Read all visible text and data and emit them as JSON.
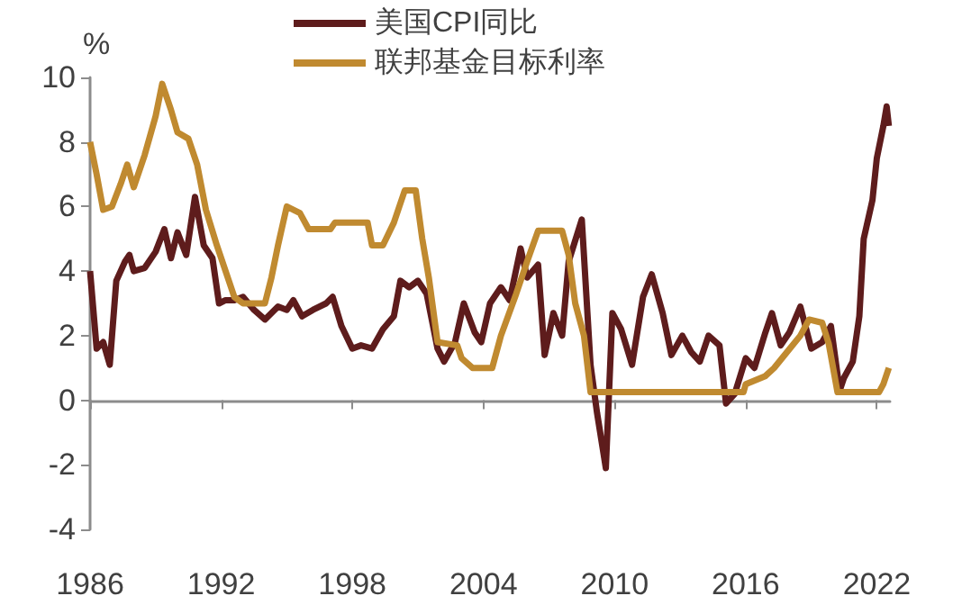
{
  "chart_data": {
    "type": "line",
    "ylabel": "%",
    "legend": "top",
    "xlim": [
      1986,
      2022.6
    ],
    "xticks": [
      1986,
      1992,
      1998,
      2004,
      2010,
      2016,
      2022
    ],
    "ylim": [
      -4,
      10
    ],
    "yticks": [
      -4,
      -2,
      0,
      2,
      4,
      6,
      8,
      10
    ],
    "series": [
      {
        "name": "美国CPI同比",
        "color": "#5e1c1c",
        "x": [
          1986.0,
          1986.3,
          1986.6,
          1986.9,
          1987.2,
          1987.6,
          1987.8,
          1988.0,
          1988.5,
          1989.0,
          1989.4,
          1989.7,
          1990.0,
          1990.4,
          1990.8,
          1991.2,
          1991.6,
          1991.9,
          1992.2,
          1992.6,
          1993.0,
          1993.5,
          1994.0,
          1994.6,
          1995.0,
          1995.3,
          1995.7,
          1996.2,
          1996.8,
          1997.1,
          1997.5,
          1998.0,
          1998.4,
          1998.9,
          1999.4,
          1999.9,
          2000.2,
          2000.6,
          2001.0,
          2001.4,
          2001.9,
          2002.2,
          2002.7,
          2003.1,
          2003.6,
          2003.9,
          2004.3,
          2004.8,
          2005.2,
          2005.7,
          2006.0,
          2006.5,
          2006.8,
          2007.2,
          2007.6,
          2007.9,
          2008.5,
          2008.9,
          2009.2,
          2009.6,
          2009.9,
          2010.3,
          2010.8,
          2011.3,
          2011.7,
          2012.2,
          2012.6,
          2013.1,
          2013.5,
          2013.9,
          2014.3,
          2014.8,
          2015.1,
          2015.5,
          2016.0,
          2016.4,
          2016.9,
          2017.2,
          2017.6,
          2018.0,
          2018.5,
          2019.0,
          2019.5,
          2019.9,
          2020.3,
          2020.5,
          2020.9,
          2021.2,
          2021.4,
          2021.8,
          2022.0,
          2022.3,
          2022.45,
          2022.55
        ],
        "values": [
          4.0,
          1.6,
          1.8,
          1.1,
          3.7,
          4.3,
          4.5,
          4.0,
          4.1,
          4.6,
          5.3,
          4.4,
          5.2,
          4.5,
          6.3,
          4.8,
          4.4,
          3.0,
          3.1,
          3.1,
          3.2,
          2.8,
          2.5,
          2.9,
          2.8,
          3.1,
          2.6,
          2.8,
          3.0,
          3.2,
          2.3,
          1.6,
          1.7,
          1.6,
          2.2,
          2.6,
          3.7,
          3.5,
          3.7,
          3.3,
          1.6,
          1.2,
          1.8,
          3.0,
          2.1,
          1.8,
          3.0,
          3.5,
          3.1,
          4.7,
          3.8,
          4.2,
          1.4,
          2.7,
          2.0,
          4.3,
          5.6,
          1.1,
          -0.4,
          -2.1,
          2.7,
          2.2,
          1.1,
          3.2,
          3.9,
          2.7,
          1.4,
          2.0,
          1.5,
          1.2,
          2.0,
          1.7,
          -0.1,
          0.2,
          1.3,
          1.0,
          2.1,
          2.7,
          1.7,
          2.1,
          2.9,
          1.6,
          1.8,
          2.3,
          0.3,
          0.7,
          1.2,
          2.6,
          5.0,
          6.2,
          7.5,
          8.5,
          9.1,
          8.5
        ]
      },
      {
        "name": "联邦基金目标利率",
        "color": "#c08a30",
        "x": [
          1986.0,
          1986.3,
          1986.6,
          1987.0,
          1987.4,
          1987.7,
          1988.0,
          1988.5,
          1989.0,
          1989.3,
          1989.7,
          1990.0,
          1990.5,
          1990.9,
          1991.3,
          1991.8,
          1992.2,
          1992.6,
          1993.0,
          1994.0,
          1994.3,
          1994.6,
          1995.0,
          1995.6,
          1996.0,
          1997.0,
          1997.2,
          1998.7,
          1998.9,
          1999.4,
          1999.9,
          2000.4,
          2000.9,
          2001.2,
          2001.5,
          2001.9,
          2002.8,
          2003.0,
          2003.5,
          2004.4,
          2004.8,
          2005.5,
          2006.0,
          2006.5,
          2007.6,
          2007.9,
          2008.2,
          2008.6,
          2008.9,
          2015.9,
          2016.0,
          2016.9,
          2017.3,
          2017.9,
          2018.5,
          2018.9,
          2019.5,
          2019.8,
          2020.2,
          2022.1,
          2022.3,
          2022.55
        ],
        "values": [
          8.0,
          7.0,
          5.9,
          6.0,
          6.7,
          7.3,
          6.6,
          7.6,
          8.8,
          9.8,
          9.0,
          8.3,
          8.1,
          7.3,
          5.9,
          4.8,
          4.0,
          3.2,
          3.0,
          3.0,
          3.8,
          4.8,
          6.0,
          5.8,
          5.3,
          5.3,
          5.5,
          5.5,
          4.8,
          4.8,
          5.5,
          6.5,
          6.5,
          5.0,
          3.8,
          1.8,
          1.7,
          1.3,
          1.0,
          1.0,
          2.0,
          3.3,
          4.3,
          5.25,
          5.25,
          4.5,
          3.0,
          2.0,
          0.25,
          0.25,
          0.5,
          0.75,
          1.0,
          1.5,
          2.0,
          2.5,
          2.4,
          1.75,
          0.25,
          0.25,
          0.5,
          1.0
        ]
      }
    ]
  }
}
